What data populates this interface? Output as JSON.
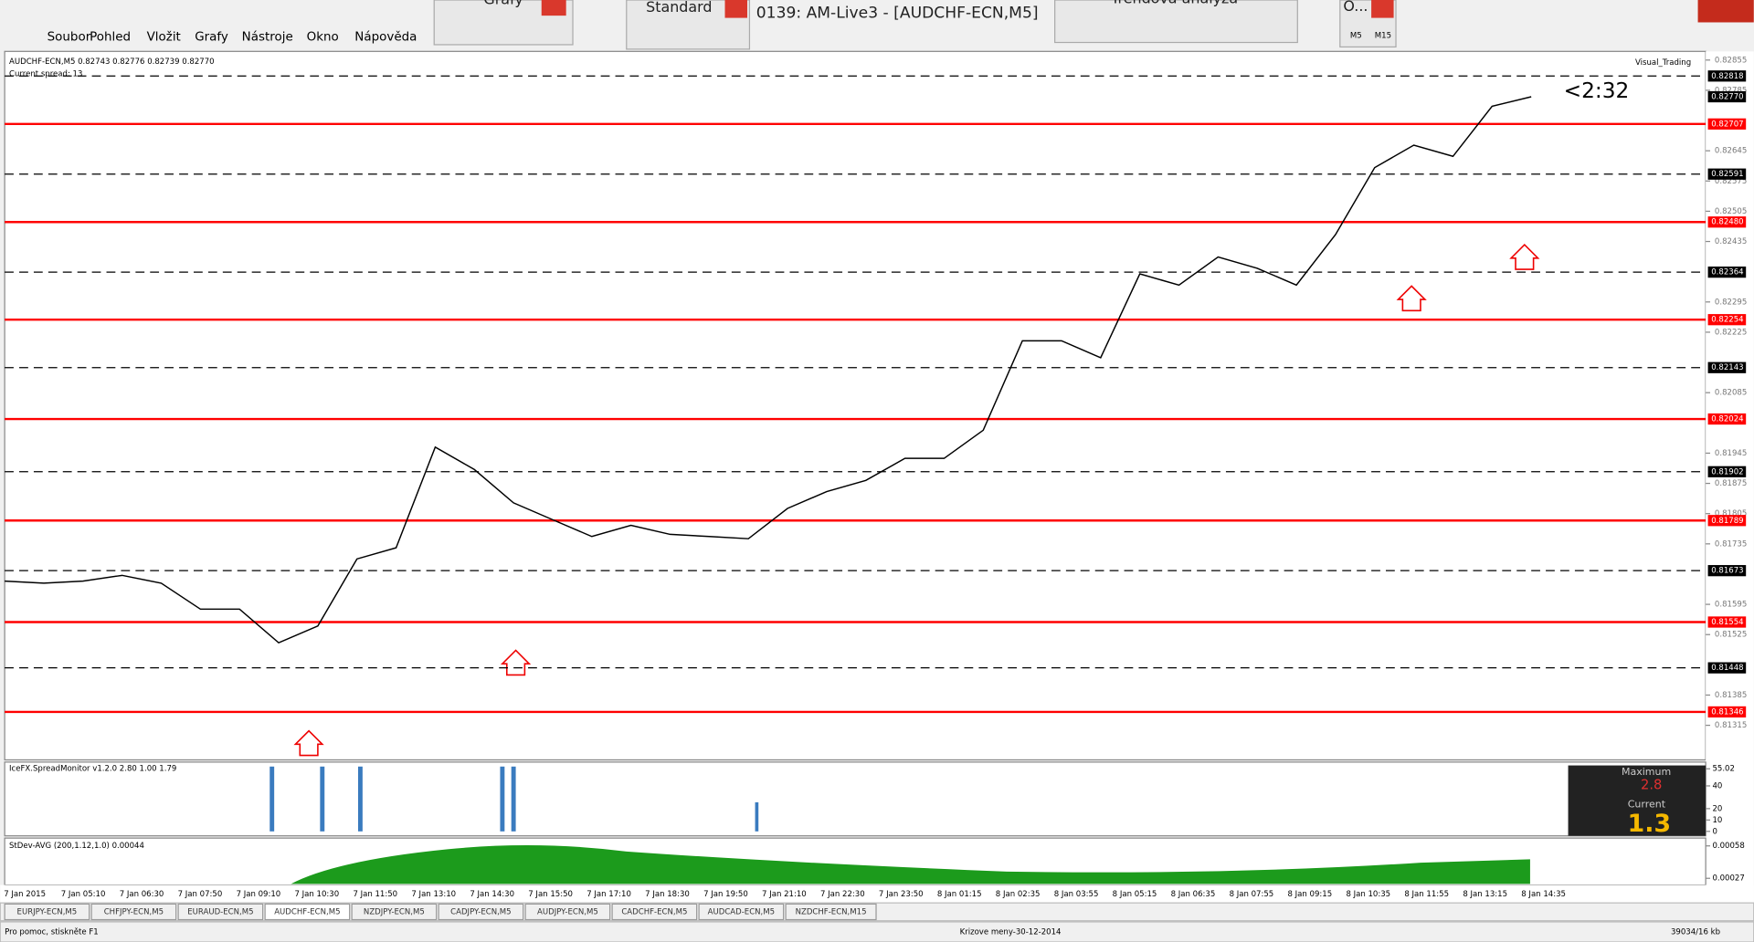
{
  "window": {
    "title": "0139: AM-Live3 - [AUDCHF-ECN,M5]"
  },
  "menu": [
    "Soubor",
    "Pohled",
    "Vložit",
    "Grafy",
    "Nástroje",
    "Okno",
    "Nápověda"
  ],
  "toolbars": [
    "Grafy",
    "Standard",
    "Trendová analýza",
    "O..."
  ],
  "periods": [
    "M5",
    "M15"
  ],
  "chart": {
    "header": "AUDCHF-ECN,M5  0.82743 0.82776 0.82739 0.82770",
    "spread": "Current spread: 13",
    "indicator": "Visual_Trading",
    "timer": "<2:32",
    "ylim": [
      0.81235,
      0.82875
    ],
    "yticks": [
      0.82855,
      0.82785,
      0.82645,
      0.82575,
      0.82505,
      0.82435,
      0.82295,
      0.82225,
      0.82085,
      0.81945,
      0.81875,
      0.81805,
      0.81735,
      0.81595,
      0.81525,
      0.81385,
      0.81315
    ],
    "red_levels": [
      0.82707,
      {
        "value": 0.8248,
        "label": "0.82480"
      },
      0.82254,
      0.82024,
      0.81789,
      0.81554,
      0.81346
    ],
    "dashed_levels": [
      0.82818,
      0.82591,
      0.82364,
      0.82143,
      0.81902,
      0.81673,
      0.81448
    ],
    "current_price": {
      "value": 0.8277,
      "label": "0.82770"
    },
    "closes": [
      0.81649,
      0.81644,
      0.81649,
      0.81662,
      0.81644,
      0.81584,
      0.81584,
      0.81506,
      0.81545,
      0.817,
      0.81726,
      0.81959,
      0.81907,
      0.8183,
      0.81791,
      0.81752,
      0.81778,
      0.81757,
      0.81752,
      0.81747,
      0.81817,
      0.81856,
      0.81882,
      0.81933,
      0.81933,
      0.81998,
      0.82205,
      0.82205,
      0.82166,
      0.8236,
      0.82334,
      0.82399,
      0.82373,
      0.82334,
      0.82451,
      0.82606,
      0.82658,
      0.82632,
      0.82748,
      0.8277
    ],
    "time_labels": [
      "7 Jan 2015",
      "7 Jan 05:10",
      "7 Jan 06:30",
      "7 Jan 07:50",
      "7 Jan 09:10",
      "7 Jan 10:30",
      "7 Jan 11:50",
      "7 Jan 13:10",
      "7 Jan 14:30",
      "7 Jan 15:50",
      "7 Jan 17:10",
      "7 Jan 18:30",
      "7 Jan 19:50",
      "7 Jan 21:10",
      "7 Jan 22:30",
      "7 Jan 23:50",
      "8 Jan 01:15",
      "8 Jan 02:35",
      "8 Jan 03:55",
      "8 Jan 05:15",
      "8 Jan 06:35",
      "8 Jan 07:55",
      "8 Jan 09:15",
      "8 Jan 10:35",
      "8 Jan 11:55",
      "8 Jan 13:15",
      "8 Jan 14:35"
    ]
  },
  "spread_monitor": {
    "title": "IceFX.SpreadMonitor v1.2.0 2.80 1.00 1.79",
    "ylim": [
      0,
      55.02
    ],
    "yticks": [
      55.02,
      40,
      20,
      10,
      0
    ],
    "maximum_label": "Maximum",
    "maximum": 2.8,
    "current_label": "Current",
    "current": 1.3
  },
  "stdev": {
    "title": "StDev-AVG (200,1.12,1.0) 0.00044",
    "yticks": [
      0.00058,
      0.00027
    ]
  },
  "tabs": [
    "EURJPY-ECN,M5",
    "CHFJPY-ECN,M5",
    "EURAUD-ECN,M5",
    "AUDCHF-ECN,M5",
    "NZDJPY-ECN,M5",
    "CADJPY-ECN,M5",
    "AUDJPY-ECN,M5",
    "CADCHF-ECN,M5",
    "AUDCAD-ECN,M5",
    "NZDCHF-ECN,M15"
  ],
  "status": {
    "help": "Pro pomoc, stiskněte F1",
    "profile": "Krizove meny-30-12-2014",
    "traffic": "39034/16 kb"
  }
}
